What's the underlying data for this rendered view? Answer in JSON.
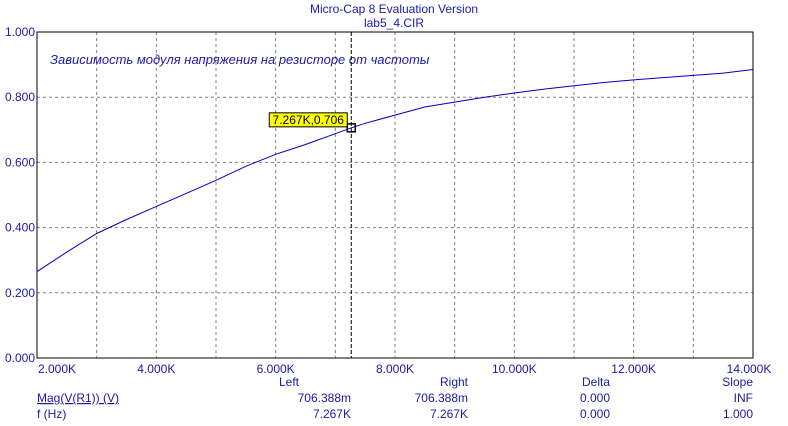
{
  "window": {
    "title": "Micro-Cap 8 Evaluation Version",
    "file": "lab5_4.CIR"
  },
  "annotation": "Зависимость модуля напряжения на резисторе от частоты",
  "cursor": {
    "x": 7.267,
    "y": 0.706,
    "label": "7.267K,0.706"
  },
  "readout": {
    "headers": {
      "left": "Left",
      "right": "Right",
      "delta": "Delta",
      "slope": "Slope"
    },
    "rows": [
      {
        "name": "Mag(V(R1)) (V)",
        "left": "706.388m",
        "right": "706.388m",
        "delta": "0.000",
        "slope": "INF"
      },
      {
        "name": "f (Hz)",
        "left": "7.267K",
        "right": "7.267K",
        "delta": "0.000",
        "slope": "1.000"
      }
    ]
  },
  "colors": {
    "curve": "#0000c0",
    "text": "#1a1aa6",
    "cursor_box": "#ffff00",
    "grid": "#808080"
  },
  "chart_data": {
    "type": "line",
    "xlim": [
      2.0,
      14.0
    ],
    "ylim": [
      0.0,
      1.0
    ],
    "x_ticks": [
      2.0,
      4.0,
      6.0,
      8.0,
      10.0,
      12.0,
      14.0
    ],
    "x_tick_labels": [
      "2.000K",
      "4.000K",
      "6.000K",
      "8.000K",
      "10.000K",
      "12.000K",
      "14.000K"
    ],
    "y_ticks": [
      0.0,
      0.2,
      0.4,
      0.6,
      0.8,
      1.0
    ],
    "y_tick_labels": [
      "0.000",
      "0.200",
      "0.400",
      "0.600",
      "0.800",
      "1.000"
    ],
    "x_grid_lines": [
      3.0,
      4.0,
      5.0,
      6.0,
      7.0,
      8.0,
      9.0,
      10.0,
      11.0,
      12.0,
      13.0
    ],
    "grid": true,
    "series": [
      {
        "name": "Mag(V(R1)) (V)",
        "x": [
          2.0,
          2.5,
          3.0,
          3.5,
          4.0,
          4.5,
          5.0,
          5.5,
          6.0,
          6.5,
          7.0,
          7.267,
          7.5,
          8.0,
          8.5,
          9.0,
          9.5,
          10.0,
          10.5,
          11.0,
          11.5,
          12.0,
          12.5,
          13.0,
          13.5,
          14.0
        ],
        "y": [
          0.265,
          0.325,
          0.382,
          0.425,
          0.465,
          0.505,
          0.545,
          0.588,
          0.625,
          0.655,
          0.688,
          0.706,
          0.72,
          0.745,
          0.77,
          0.785,
          0.8,
          0.813,
          0.825,
          0.835,
          0.845,
          0.853,
          0.86,
          0.867,
          0.874,
          0.885
        ]
      }
    ]
  }
}
